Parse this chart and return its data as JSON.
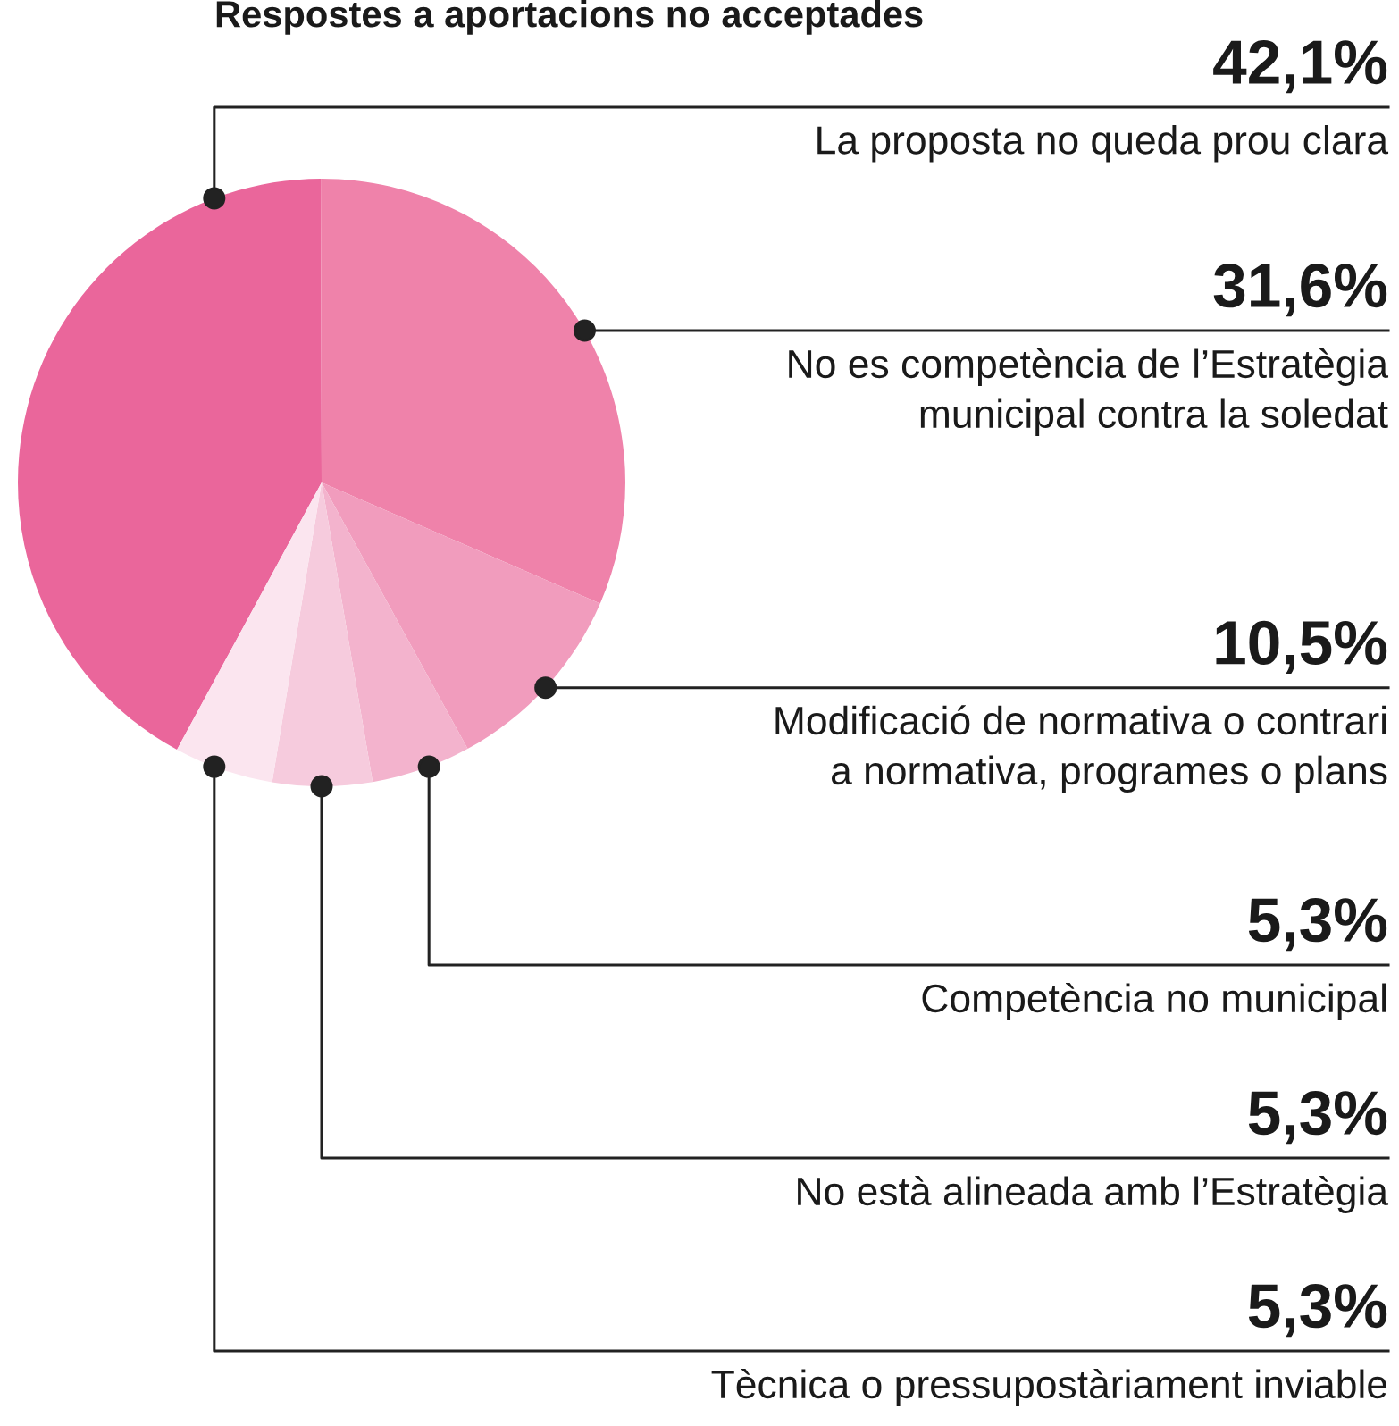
{
  "chart_data": {
    "type": "pie",
    "title": "Respostes a aportacions no acceptades",
    "categories": [
      "La proposta no queda prou clara",
      "No es competència de l’Estratègia\nmunicipal contra la soledat",
      "Modificació de normativa o contrari\na normativa, programes o plans",
      "Competència no municipal",
      "No està alineada amb l’Estratègia",
      "Tècnica o pressupostàriament inviable"
    ],
    "values": [
      42.1,
      31.6,
      10.5,
      5.3,
      5.3,
      5.3
    ],
    "value_labels": [
      "42,1%",
      "31,6%",
      "10,5%",
      "5,3%",
      "5,3%",
      "5,3%"
    ],
    "colors": [
      "#ea669b",
      "#ef82aa",
      "#f19cbd",
      "#f3b3cd",
      "#f6cbdd",
      "#fbe5ef"
    ]
  }
}
